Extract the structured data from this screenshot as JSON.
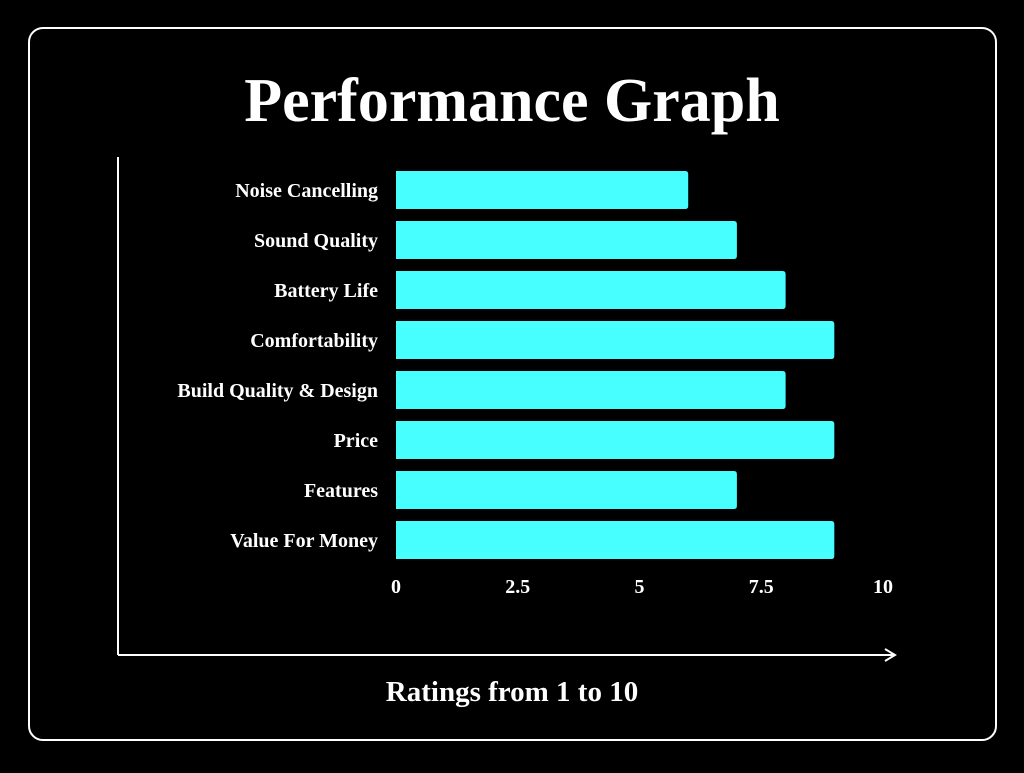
{
  "chart_data": {
    "type": "bar",
    "orientation": "horizontal",
    "title": "Performance Graph",
    "xlabel": "Ratings from 1 to 10",
    "ylabel": "",
    "categories": [
      "Noise Cancelling",
      "Sound Quality",
      "Battery Life",
      "Comfortability",
      "Build Quality & Design",
      "Price",
      "Features",
      "Value For Money"
    ],
    "values": [
      6,
      7,
      8,
      9,
      8,
      9,
      7,
      9
    ],
    "xlim": [
      0,
      10
    ],
    "xticks": [
      0,
      2.5,
      5,
      7.5,
      10
    ],
    "xtick_labels": [
      "0",
      "2.5",
      "5",
      "7.5",
      "10"
    ],
    "grid": false,
    "bar_color": "#47FFFF",
    "background": "#000000",
    "text_color": "#FFFFFF"
  }
}
